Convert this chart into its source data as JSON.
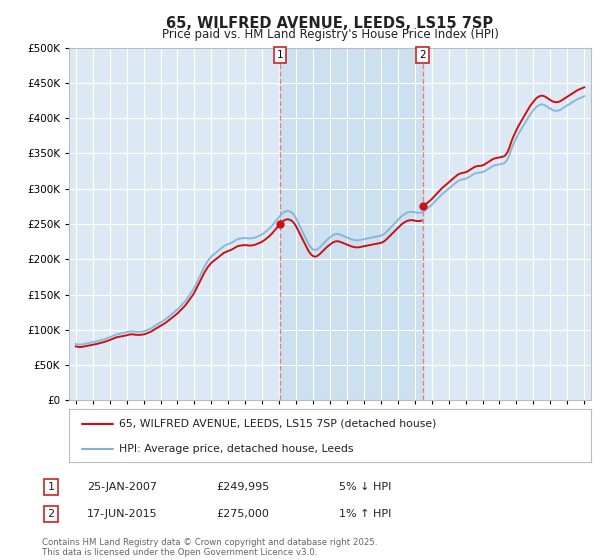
{
  "title": "65, WILFRED AVENUE, LEEDS, LS15 7SP",
  "subtitle": "Price paid vs. HM Land Registry's House Price Index (HPI)",
  "ytick_values": [
    0,
    50000,
    100000,
    150000,
    200000,
    250000,
    300000,
    350000,
    400000,
    450000,
    500000
  ],
  "ylim": [
    0,
    500000
  ],
  "fig_bg_color": "#ffffff",
  "plot_bg_color": "#dce9f5",
  "highlight_bg_color": "#cce0f0",
  "grid_color": "#ffffff",
  "hpi_color": "#7fb3d9",
  "price_color": "#cc1111",
  "vline_color": "#e08080",
  "legend_line1": "65, WILFRED AVENUE, LEEDS, LS15 7SP (detached house)",
  "legend_line2": "HPI: Average price, detached house, Leeds",
  "footer": "Contains HM Land Registry data © Crown copyright and database right 2025.\nThis data is licensed under the Open Government Licence v3.0.",
  "sale1_year": 2007.05,
  "sale1_price": 249995,
  "sale1_label": "25-JAN-2007",
  "sale1_pct": "5% ↓ HPI",
  "sale2_year": 2015.46,
  "sale2_price": 275000,
  "sale2_label": "17-JUN-2015",
  "sale2_pct": "1% ↑ HPI",
  "hpi_data": [
    [
      1995.0,
      80000
    ],
    [
      1995.1,
      79500
    ],
    [
      1995.2,
      79000
    ],
    [
      1995.3,
      79200
    ],
    [
      1995.4,
      79500
    ],
    [
      1995.5,
      80000
    ],
    [
      1995.6,
      80500
    ],
    [
      1995.7,
      81000
    ],
    [
      1995.8,
      81500
    ],
    [
      1995.9,
      82000
    ],
    [
      1996.0,
      82500
    ],
    [
      1996.1,
      83000
    ],
    [
      1996.2,
      83500
    ],
    [
      1996.3,
      84000
    ],
    [
      1996.4,
      84800
    ],
    [
      1996.5,
      85500
    ],
    [
      1996.6,
      86000
    ],
    [
      1996.7,
      86800
    ],
    [
      1996.8,
      87500
    ],
    [
      1996.9,
      88500
    ],
    [
      1997.0,
      89500
    ],
    [
      1997.1,
      90500
    ],
    [
      1997.2,
      91500
    ],
    [
      1997.3,
      92500
    ],
    [
      1997.4,
      93500
    ],
    [
      1997.5,
      94000
    ],
    [
      1997.6,
      94500
    ],
    [
      1997.7,
      95000
    ],
    [
      1997.8,
      95500
    ],
    [
      1997.9,
      96000
    ],
    [
      1998.0,
      96500
    ],
    [
      1998.1,
      97200
    ],
    [
      1998.2,
      97800
    ],
    [
      1998.3,
      98000
    ],
    [
      1998.4,
      97800
    ],
    [
      1998.5,
      97500
    ],
    [
      1998.6,
      97200
    ],
    [
      1998.7,
      97000
    ],
    [
      1998.8,
      97200
    ],
    [
      1998.9,
      97500
    ],
    [
      1999.0,
      97800
    ],
    [
      1999.1,
      98500
    ],
    [
      1999.2,
      99500
    ],
    [
      1999.3,
      100500
    ],
    [
      1999.4,
      101500
    ],
    [
      1999.5,
      103000
    ],
    [
      1999.6,
      104500
    ],
    [
      1999.7,
      106000
    ],
    [
      1999.8,
      107500
    ],
    [
      1999.9,
      109000
    ],
    [
      2000.0,
      110500
    ],
    [
      2000.1,
      112000
    ],
    [
      2000.2,
      113500
    ],
    [
      2000.3,
      115000
    ],
    [
      2000.4,
      117000
    ],
    [
      2000.5,
      119000
    ],
    [
      2000.6,
      121000
    ],
    [
      2000.7,
      123000
    ],
    [
      2000.8,
      125000
    ],
    [
      2000.9,
      127000
    ],
    [
      2001.0,
      129000
    ],
    [
      2001.1,
      131500
    ],
    [
      2001.2,
      134000
    ],
    [
      2001.3,
      136500
    ],
    [
      2001.4,
      139000
    ],
    [
      2001.5,
      142000
    ],
    [
      2001.6,
      145500
    ],
    [
      2001.7,
      149000
    ],
    [
      2001.8,
      152500
    ],
    [
      2001.9,
      156000
    ],
    [
      2002.0,
      160000
    ],
    [
      2002.1,
      165000
    ],
    [
      2002.2,
      170000
    ],
    [
      2002.3,
      175000
    ],
    [
      2002.4,
      180000
    ],
    [
      2002.5,
      185000
    ],
    [
      2002.6,
      190000
    ],
    [
      2002.7,
      194000
    ],
    [
      2002.8,
      198000
    ],
    [
      2002.9,
      201000
    ],
    [
      2003.0,
      204000
    ],
    [
      2003.1,
      206000
    ],
    [
      2003.2,
      208000
    ],
    [
      2003.3,
      210000
    ],
    [
      2003.4,
      212000
    ],
    [
      2003.5,
      214000
    ],
    [
      2003.6,
      216000
    ],
    [
      2003.7,
      218000
    ],
    [
      2003.8,
      219500
    ],
    [
      2003.9,
      220500
    ],
    [
      2004.0,
      221500
    ],
    [
      2004.1,
      222500
    ],
    [
      2004.2,
      223500
    ],
    [
      2004.3,
      225000
    ],
    [
      2004.4,
      226500
    ],
    [
      2004.5,
      228000
    ],
    [
      2004.6,
      229000
    ],
    [
      2004.7,
      229500
    ],
    [
      2004.8,
      229800
    ],
    [
      2004.9,
      230000
    ],
    [
      2005.0,
      230200
    ],
    [
      2005.1,
      230000
    ],
    [
      2005.2,
      229800
    ],
    [
      2005.3,
      229500
    ],
    [
      2005.4,
      229800
    ],
    [
      2005.5,
      230200
    ],
    [
      2005.6,
      231000
    ],
    [
      2005.7,
      232000
    ],
    [
      2005.8,
      233000
    ],
    [
      2005.9,
      234000
    ],
    [
      2006.0,
      235500
    ],
    [
      2006.1,
      237000
    ],
    [
      2006.2,
      239000
    ],
    [
      2006.3,
      241000
    ],
    [
      2006.4,
      243000
    ],
    [
      2006.5,
      245500
    ],
    [
      2006.6,
      248000
    ],
    [
      2006.7,
      251000
    ],
    [
      2006.8,
      254000
    ],
    [
      2006.9,
      257000
    ],
    [
      2007.0,
      260000
    ],
    [
      2007.1,
      263000
    ],
    [
      2007.2,
      265500
    ],
    [
      2007.3,
      267000
    ],
    [
      2007.4,
      268000
    ],
    [
      2007.5,
      268500
    ],
    [
      2007.6,
      268000
    ],
    [
      2007.7,
      267000
    ],
    [
      2007.8,
      265000
    ],
    [
      2007.9,
      262000
    ],
    [
      2008.0,
      258000
    ],
    [
      2008.1,
      253000
    ],
    [
      2008.2,
      248000
    ],
    [
      2008.3,
      243000
    ],
    [
      2008.4,
      238000
    ],
    [
      2008.5,
      233000
    ],
    [
      2008.6,
      228000
    ],
    [
      2008.7,
      223000
    ],
    [
      2008.8,
      219000
    ],
    [
      2008.9,
      216000
    ],
    [
      2009.0,
      214000
    ],
    [
      2009.1,
      213000
    ],
    [
      2009.2,
      213500
    ],
    [
      2009.3,
      215000
    ],
    [
      2009.4,
      217000
    ],
    [
      2009.5,
      219500
    ],
    [
      2009.6,
      222000
    ],
    [
      2009.7,
      224500
    ],
    [
      2009.8,
      227000
    ],
    [
      2009.9,
      229000
    ],
    [
      2010.0,
      231000
    ],
    [
      2010.1,
      233000
    ],
    [
      2010.2,
      234500
    ],
    [
      2010.3,
      235500
    ],
    [
      2010.4,
      236000
    ],
    [
      2010.5,
      235800
    ],
    [
      2010.6,
      235000
    ],
    [
      2010.7,
      234000
    ],
    [
      2010.8,
      233000
    ],
    [
      2010.9,
      232000
    ],
    [
      2011.0,
      231000
    ],
    [
      2011.1,
      230000
    ],
    [
      2011.2,
      229000
    ],
    [
      2011.3,
      228000
    ],
    [
      2011.4,
      227500
    ],
    [
      2011.5,
      227000
    ],
    [
      2011.6,
      226800
    ],
    [
      2011.7,
      227000
    ],
    [
      2011.8,
      227500
    ],
    [
      2011.9,
      228000
    ],
    [
      2012.0,
      228500
    ],
    [
      2012.1,
      229000
    ],
    [
      2012.2,
      229500
    ],
    [
      2012.3,
      230000
    ],
    [
      2012.4,
      230500
    ],
    [
      2012.5,
      231000
    ],
    [
      2012.6,
      231500
    ],
    [
      2012.7,
      232000
    ],
    [
      2012.8,
      232500
    ],
    [
      2012.9,
      233000
    ],
    [
      2013.0,
      233500
    ],
    [
      2013.1,
      234500
    ],
    [
      2013.2,
      236000
    ],
    [
      2013.3,
      238000
    ],
    [
      2013.4,
      240500
    ],
    [
      2013.5,
      243000
    ],
    [
      2013.6,
      245500
    ],
    [
      2013.7,
      248000
    ],
    [
      2013.8,
      250500
    ],
    [
      2013.9,
      253000
    ],
    [
      2014.0,
      255500
    ],
    [
      2014.1,
      258000
    ],
    [
      2014.2,
      260500
    ],
    [
      2014.3,
      262500
    ],
    [
      2014.4,
      264000
    ],
    [
      2014.5,
      265500
    ],
    [
      2014.6,
      266500
    ],
    [
      2014.7,
      267000
    ],
    [
      2014.8,
      267200
    ],
    [
      2014.9,
      267000
    ],
    [
      2015.0,
      266500
    ],
    [
      2015.1,
      266000
    ],
    [
      2015.2,
      265800
    ],
    [
      2015.3,
      266000
    ],
    [
      2015.4,
      266500
    ],
    [
      2015.5,
      267500
    ],
    [
      2015.6,
      269000
    ],
    [
      2015.7,
      271000
    ],
    [
      2015.8,
      273000
    ],
    [
      2015.9,
      275000
    ],
    [
      2016.0,
      277000
    ],
    [
      2016.1,
      279500
    ],
    [
      2016.2,
      282000
    ],
    [
      2016.3,
      284500
    ],
    [
      2016.4,
      287000
    ],
    [
      2016.5,
      289500
    ],
    [
      2016.6,
      292000
    ],
    [
      2016.7,
      294000
    ],
    [
      2016.8,
      296000
    ],
    [
      2016.9,
      298000
    ],
    [
      2017.0,
      300000
    ],
    [
      2017.1,
      302000
    ],
    [
      2017.2,
      304000
    ],
    [
      2017.3,
      306000
    ],
    [
      2017.4,
      308000
    ],
    [
      2017.5,
      310000
    ],
    [
      2017.6,
      311500
    ],
    [
      2017.7,
      312500
    ],
    [
      2017.8,
      313000
    ],
    [
      2017.9,
      313500
    ],
    [
      2018.0,
      314000
    ],
    [
      2018.1,
      315000
    ],
    [
      2018.2,
      316500
    ],
    [
      2018.3,
      318000
    ],
    [
      2018.4,
      319500
    ],
    [
      2018.5,
      321000
    ],
    [
      2018.6,
      322000
    ],
    [
      2018.7,
      322500
    ],
    [
      2018.8,
      322800
    ],
    [
      2018.9,
      323000
    ],
    [
      2019.0,
      323500
    ],
    [
      2019.1,
      324500
    ],
    [
      2019.2,
      326000
    ],
    [
      2019.3,
      327500
    ],
    [
      2019.4,
      329000
    ],
    [
      2019.5,
      330500
    ],
    [
      2019.6,
      332000
    ],
    [
      2019.7,
      333000
    ],
    [
      2019.8,
      333500
    ],
    [
      2019.9,
      334000
    ],
    [
      2020.0,
      334500
    ],
    [
      2020.1,
      335000
    ],
    [
      2020.2,
      335500
    ],
    [
      2020.3,
      336500
    ],
    [
      2020.4,
      339000
    ],
    [
      2020.5,
      343000
    ],
    [
      2020.6,
      349000
    ],
    [
      2020.7,
      356000
    ],
    [
      2020.8,
      362000
    ],
    [
      2020.9,
      367000
    ],
    [
      2021.0,
      372000
    ],
    [
      2021.1,
      377000
    ],
    [
      2021.2,
      381000
    ],
    [
      2021.3,
      385000
    ],
    [
      2021.4,
      389000
    ],
    [
      2021.5,
      393000
    ],
    [
      2021.6,
      397000
    ],
    [
      2021.7,
      401000
    ],
    [
      2021.8,
      405000
    ],
    [
      2021.9,
      408000
    ],
    [
      2022.0,
      411000
    ],
    [
      2022.1,
      414000
    ],
    [
      2022.2,
      416500
    ],
    [
      2022.3,
      418000
    ],
    [
      2022.4,
      419000
    ],
    [
      2022.5,
      419500
    ],
    [
      2022.6,
      419000
    ],
    [
      2022.7,
      418000
    ],
    [
      2022.8,
      416500
    ],
    [
      2022.9,
      415000
    ],
    [
      2023.0,
      413500
    ],
    [
      2023.1,
      412000
    ],
    [
      2023.2,
      411000
    ],
    [
      2023.3,
      410500
    ],
    [
      2023.4,
      410500
    ],
    [
      2023.5,
      411000
    ],
    [
      2023.6,
      412000
    ],
    [
      2023.7,
      413500
    ],
    [
      2023.8,
      415000
    ],
    [
      2023.9,
      416500
    ],
    [
      2024.0,
      418000
    ],
    [
      2024.1,
      419500
    ],
    [
      2024.2,
      421000
    ],
    [
      2024.3,
      422500
    ],
    [
      2024.4,
      424000
    ],
    [
      2024.5,
      425500
    ],
    [
      2024.6,
      427000
    ],
    [
      2024.7,
      428000
    ],
    [
      2024.8,
      429000
    ],
    [
      2024.9,
      430000
    ],
    [
      2025.0,
      431000
    ]
  ]
}
